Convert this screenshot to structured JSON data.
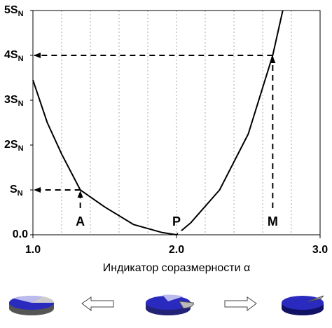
{
  "chart_data": {
    "type": "line",
    "x_label": "Индикатор соразмерности α",
    "x": [
      1.0,
      1.1,
      1.2,
      1.33,
      1.5,
      1.7,
      1.9,
      2.0,
      2.1,
      2.3,
      2.5,
      2.67,
      2.74
    ],
    "series": [
      {
        "color": "#000000",
        "values": [
          3.45,
          2.5,
          1.8,
          1.0,
          0.62,
          0.23,
          0.05,
          0,
          0.27,
          1.0,
          2.25,
          4.0,
          5.0
        ]
      }
    ],
    "xlim": [
      1.0,
      3.0
    ],
    "ylim": [
      0,
      5
    ],
    "xticks": [
      {
        "value": 1,
        "label": "1.0"
      },
      {
        "value": 2,
        "label": "2.0"
      },
      {
        "value": 3,
        "label": "3.0"
      }
    ],
    "xgrid": [
      1.2,
      1.4,
      1.6,
      1.8,
      2.0,
      2.2,
      2.4,
      2.6,
      2.8
    ],
    "yticks": [
      {
        "value": 0,
        "label": "0.0"
      },
      {
        "value": 1,
        "label": "S",
        "sub": "N"
      },
      {
        "value": 2,
        "label": "2S",
        "sub": "N"
      },
      {
        "value": 3,
        "label": "3S",
        "sub": "N"
      },
      {
        "value": 4,
        "label": "4S",
        "sub": "N"
      },
      {
        "value": 5,
        "label": "5S",
        "sub": "N"
      }
    ],
    "annotations": [
      {
        "label": "A",
        "x": 1.33,
        "y": 1.0
      },
      {
        "label": "P",
        "x": 2.0,
        "y": 0
      },
      {
        "label": "M",
        "x": 2.67,
        "y": 4.0
      }
    ]
  }
}
